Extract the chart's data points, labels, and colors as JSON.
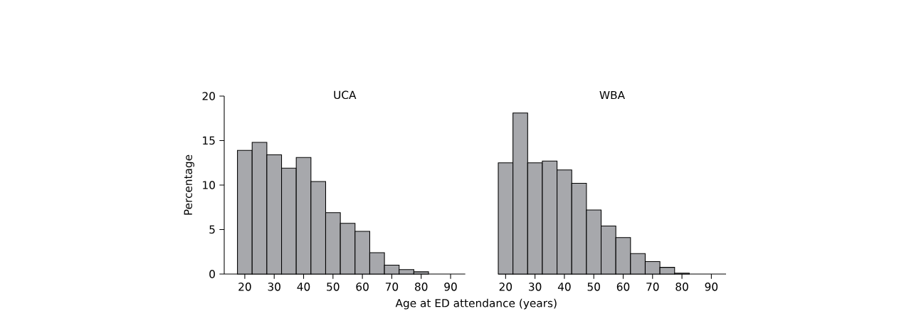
{
  "chart_data": [
    {
      "type": "histogram",
      "title": "UCA",
      "xlabel": "Age at ED attendance (years)",
      "ylabel": "Percentage",
      "bins": [
        17.5,
        22.5,
        27.5,
        32.5,
        37.5,
        42.5,
        47.5,
        52.5,
        57.5,
        62.5,
        67.5,
        72.5,
        77.5,
        82.5
      ],
      "values": [
        13.9,
        14.8,
        13.4,
        11.9,
        13.1,
        10.4,
        6.9,
        5.7,
        4.8,
        2.4,
        1.0,
        0.5,
        0.25
      ],
      "color": "#a7a8ac",
      "xlim": [
        13,
        95
      ],
      "ylim": [
        0,
        20
      ],
      "xticks": [
        20,
        30,
        40,
        50,
        60,
        70,
        80,
        90
      ],
      "yticks": [
        0,
        5,
        10,
        15,
        20
      ]
    },
    {
      "type": "histogram",
      "title": "WBA",
      "bins": [
        17.5,
        22.5,
        27.5,
        32.5,
        37.5,
        42.5,
        47.5,
        52.5,
        57.5,
        62.5,
        67.5,
        72.5,
        77.5,
        82.5
      ],
      "values": [
        12.5,
        18.1,
        12.5,
        12.7,
        11.7,
        10.2,
        7.2,
        5.4,
        4.1,
        2.3,
        1.4,
        0.75,
        0.1
      ],
      "color": "#a7a8ac",
      "xlim": [
        17.5,
        95
      ],
      "ylim": [
        0,
        20
      ],
      "xticks": [
        20,
        30,
        40,
        50,
        60,
        70,
        80,
        90
      ],
      "yticks": [
        0,
        5,
        10,
        15,
        20
      ],
      "tick_labels": "x"
    }
  ]
}
